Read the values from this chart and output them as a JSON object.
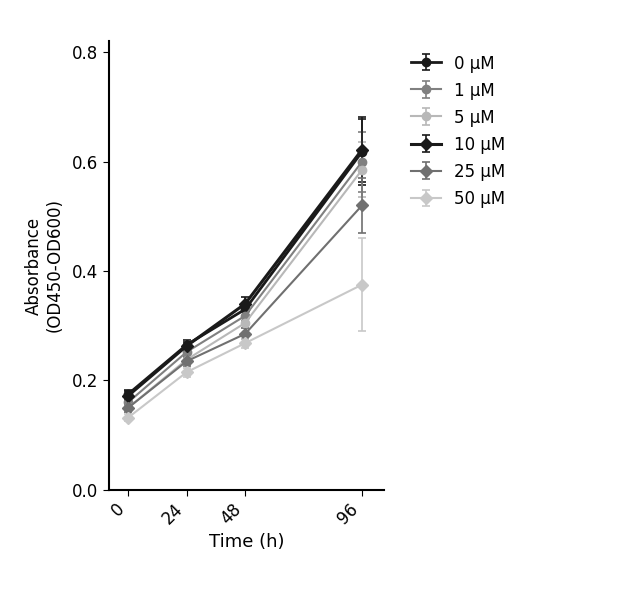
{
  "time_points": [
    0,
    24,
    48,
    96
  ],
  "series": [
    {
      "label": "0 μM",
      "color": "#1a1a1a",
      "marker": "o",
      "markersize": 6,
      "linewidth": 2.0,
      "values": [
        0.175,
        0.265,
        0.33,
        0.618
      ],
      "errors": [
        0.008,
        0.008,
        0.012,
        0.06
      ]
    },
    {
      "label": "1 μM",
      "color": "#808080",
      "marker": "o",
      "markersize": 6,
      "linewidth": 1.5,
      "values": [
        0.16,
        0.252,
        0.318,
        0.6
      ],
      "errors": [
        0.007,
        0.008,
        0.01,
        0.055
      ]
    },
    {
      "label": "5 μM",
      "color": "#b8b8b8",
      "marker": "o",
      "markersize": 6,
      "linewidth": 1.5,
      "values": [
        0.15,
        0.238,
        0.305,
        0.585
      ],
      "errors": [
        0.007,
        0.008,
        0.01,
        0.05
      ]
    },
    {
      "label": "10 μM",
      "color": "#1a1a1a",
      "marker": "D",
      "markersize": 6,
      "linewidth": 2.2,
      "values": [
        0.172,
        0.263,
        0.34,
        0.622
      ],
      "errors": [
        0.008,
        0.008,
        0.012,
        0.06
      ]
    },
    {
      "label": "25 μM",
      "color": "#707070",
      "marker": "D",
      "markersize": 6,
      "linewidth": 1.5,
      "values": [
        0.15,
        0.235,
        0.285,
        0.52
      ],
      "errors": [
        0.007,
        0.008,
        0.01,
        0.05
      ]
    },
    {
      "label": "50 μM",
      "color": "#c8c8c8",
      "marker": "D",
      "markersize": 6,
      "linewidth": 1.5,
      "values": [
        0.132,
        0.215,
        0.268,
        0.375
      ],
      "errors": [
        0.007,
        0.008,
        0.008,
        0.085
      ]
    }
  ],
  "xlabel": "Time (h)",
  "ylabel": "Absorbance\n(OD450-OD600)",
  "ylim": [
    0.0,
    0.82
  ],
  "yticks": [
    0.0,
    0.2,
    0.4,
    0.6,
    0.8
  ],
  "xticks": [
    0,
    24,
    48,
    96
  ],
  "background_color": "#ffffff",
  "figure_width": 6.4,
  "figure_height": 5.9
}
